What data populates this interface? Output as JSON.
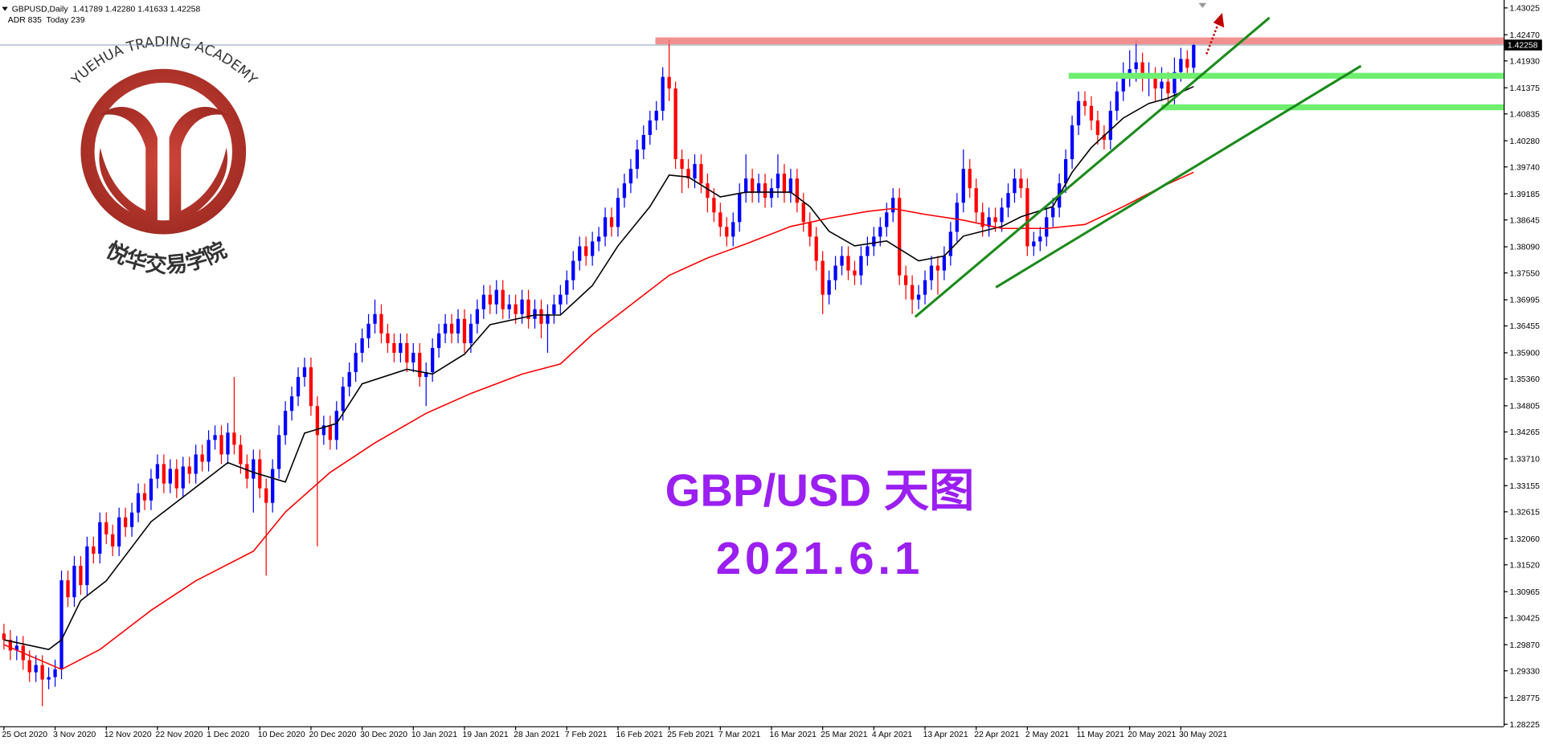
{
  "chart_data": {
    "type": "candlestick",
    "header": "GBPUSD,Daily  1.41789 1.42280 1.41633 1.42258",
    "subheader": "ADR 835  Today 239",
    "watermark": "YUEHUA TRADING ACADEMY",
    "watermark_cn": "悦华交易学院",
    "title": "GBP/USD 天图",
    "date": "2021.6.1",
    "last_price": 1.42258,
    "up_color": "#0000ff",
    "down_color": "#ff0000",
    "ylim": [
      1.28225,
      1.43025
    ],
    "yticks": [
      1.43025,
      {
        "value": 1.4247,
        "label": "1.42470"
      },
      {
        "value": 1.4193,
        "label": "1.41930"
      },
      1.41375,
      1.40835,
      {
        "value": 1.4028,
        "label": "1.40280"
      },
      {
        "value": 1.3974,
        "label": "1.39740"
      },
      1.39185,
      1.38645,
      {
        "value": 1.3809,
        "label": "1.38090"
      },
      {
        "value": 1.3755,
        "label": "1.37550"
      },
      1.36995,
      1.36455,
      {
        "value": 1.359,
        "label": "1.35900"
      },
      {
        "value": 1.3536,
        "label": "1.35360"
      },
      1.34805,
      1.34265,
      {
        "value": 1.3371,
        "label": "1.33710"
      },
      1.33155,
      1.32615,
      {
        "value": 1.3206,
        "label": "1.32060"
      },
      {
        "value": 1.3152,
        "label": "1.31520"
      },
      1.30965,
      1.30425,
      {
        "value": 1.2987,
        "label": "1.29870"
      },
      {
        "value": 1.2933,
        "label": "1.29330"
      },
      1.28775,
      1.28225
    ],
    "categories": [
      "25 Oct 2020",
      null,
      null,
      null,
      null,
      null,
      null,
      null,
      "3 Nov 2020",
      null,
      null,
      null,
      null,
      null,
      null,
      null,
      "12 Nov 2020",
      null,
      null,
      null,
      null,
      null,
      null,
      null,
      "22 Nov 2020",
      null,
      null,
      null,
      null,
      null,
      null,
      null,
      "1 Dec 2020",
      null,
      null,
      null,
      null,
      null,
      null,
      null,
      "10 Dec 2020",
      null,
      null,
      null,
      null,
      null,
      null,
      null,
      "20 Dec 2020",
      null,
      null,
      null,
      null,
      null,
      null,
      null,
      "30 Dec 2020",
      null,
      null,
      null,
      null,
      null,
      null,
      null,
      "10 Jan 2021",
      null,
      null,
      null,
      null,
      null,
      null,
      null,
      "19 Jan 2021",
      null,
      null,
      null,
      null,
      null,
      null,
      null,
      "28 Jan 2021",
      null,
      null,
      null,
      null,
      null,
      null,
      null,
      "7 Feb 2021",
      null,
      null,
      null,
      null,
      null,
      null,
      null,
      "16 Feb 2021",
      null,
      null,
      null,
      null,
      null,
      null,
      null,
      "25 Feb 2021",
      null,
      null,
      null,
      null,
      null,
      null,
      null,
      "7 Mar 2021",
      null,
      null,
      null,
      null,
      null,
      null,
      null,
      "16 Mar 2021",
      null,
      null,
      null,
      null,
      null,
      null,
      null,
      "25 Mar 2021",
      null,
      null,
      null,
      null,
      null,
      null,
      null,
      "4 Apr 2021",
      null,
      null,
      null,
      null,
      null,
      null,
      null,
      "13 Apr 2021",
      null,
      null,
      null,
      null,
      null,
      null,
      null,
      "22 Apr 2021",
      null,
      null,
      null,
      null,
      null,
      null,
      null,
      "2 May 2021",
      null,
      null,
      null,
      null,
      null,
      null,
      null,
      "11 May 2021",
      null,
      null,
      null,
      null,
      null,
      null,
      null,
      "20 May 2021",
      null,
      null,
      null,
      null,
      null,
      null,
      null,
      "30 May 2021",
      null,
      null
    ],
    "open": [
      1.301,
      1.2997,
      1.2975,
      1.2985,
      1.2955,
      1.293,
      1.2945,
      1.2915,
      1.292,
      1.2936,
      1.312,
      1.3085,
      1.315,
      1.311,
      1.319,
      1.3175,
      1.324,
      1.3215,
      1.319,
      1.325,
      1.323,
      1.326,
      1.33,
      1.3285,
      1.333,
      1.336,
      1.332,
      1.335,
      1.331,
      1.3355,
      1.334,
      1.338,
      1.3365,
      1.341,
      1.342,
      1.338,
      1.3425,
      1.34,
      1.336,
      1.333,
      1.337,
      1.331,
      1.328,
      1.335,
      1.342,
      1.347,
      1.35,
      1.354,
      1.356,
      1.348,
      1.342,
      1.344,
      1.341,
      1.347,
      1.352,
      1.355,
      1.359,
      1.362,
      1.365,
      1.367,
      1.363,
      1.361,
      1.359,
      1.361,
      1.357,
      1.359,
      1.354,
      1.355,
      1.36,
      1.363,
      1.365,
      1.363,
      1.366,
      1.361,
      1.365,
      1.368,
      1.371,
      1.369,
      1.372,
      1.368,
      1.369,
      1.367,
      1.37,
      1.366,
      1.368,
      1.365,
      1.367,
      1.369,
      1.371,
      1.374,
      1.378,
      1.381,
      1.379,
      1.382,
      1.383,
      1.387,
      1.385,
      1.391,
      1.394,
      1.397,
      1.401,
      1.404,
      1.407,
      1.409,
      1.416,
      1.4136,
      1.399,
      1.397,
      1.395,
      1.398,
      1.394,
      1.391,
      1.388,
      1.385,
      1.383,
      1.386,
      1.392,
      1.395,
      1.392,
      1.394,
      1.391,
      1.393,
      1.396,
      1.392,
      1.395,
      1.39,
      1.386,
      1.383,
      1.378,
      1.371,
      1.374,
      1.377,
      1.379,
      1.376,
      1.375,
      1.379,
      1.381,
      1.383,
      1.385,
      1.388,
      1.391,
      1.375,
      1.373,
      1.37,
      1.371,
      1.374,
      1.377,
      1.376,
      1.379,
      1.384,
      1.39,
      1.397,
      1.393,
      1.388,
      1.385,
      1.387,
      1.386,
      1.389,
      1.392,
      1.395,
      1.393,
      1.381,
      1.382,
      1.383,
      1.387,
      1.389,
      1.394,
      1.399,
      1.406,
      1.411,
      1.41,
      1.407,
      1.404,
      1.403,
      1.409,
      1.413,
      1.416,
      1.4176,
      1.419,
      1.4156,
      1.416,
      1.4136,
      1.415,
      1.4126,
      1.417,
      1.4197,
      1.41789
    ],
    "high": [
      1.303,
      1.3017,
      1.3005,
      1.3005,
      1.2975,
      1.2965,
      1.2965,
      1.294,
      1.2956,
      1.314,
      1.314,
      1.317,
      1.317,
      1.321,
      1.321,
      1.326,
      1.326,
      1.3235,
      1.327,
      1.327,
      1.328,
      1.332,
      1.332,
      1.335,
      1.338,
      1.338,
      1.337,
      1.337,
      1.3375,
      1.3375,
      1.34,
      1.34,
      1.343,
      1.344,
      1.344,
      1.3445,
      1.354,
      1.342,
      1.338,
      1.339,
      1.339,
      1.333,
      1.337,
      1.344,
      1.349,
      1.352,
      1.356,
      1.358,
      1.358,
      1.35,
      1.346,
      1.346,
      1.349,
      1.354,
      1.357,
      1.361,
      1.364,
      1.367,
      1.37,
      1.369,
      1.365,
      1.363,
      1.363,
      1.363,
      1.361,
      1.361,
      1.357,
      1.362,
      1.365,
      1.367,
      1.367,
      1.368,
      1.368,
      1.367,
      1.37,
      1.373,
      1.373,
      1.374,
      1.374,
      1.371,
      1.371,
      1.372,
      1.372,
      1.37,
      1.37,
      1.369,
      1.371,
      1.373,
      1.376,
      1.38,
      1.383,
      1.383,
      1.384,
      1.385,
      1.389,
      1.389,
      1.393,
      1.396,
      1.399,
      1.403,
      1.406,
      1.409,
      1.411,
      1.418,
      1.4237,
      1.415,
      1.401,
      1.399,
      1.4,
      1.4,
      1.396,
      1.393,
      1.39,
      1.387,
      1.388,
      1.394,
      1.4,
      1.397,
      1.396,
      1.396,
      1.395,
      1.4,
      1.398,
      1.397,
      1.397,
      1.392,
      1.388,
      1.385,
      1.38,
      1.376,
      1.379,
      1.381,
      1.381,
      1.378,
      1.381,
      1.383,
      1.385,
      1.387,
      1.39,
      1.393,
      1.393,
      1.377,
      1.375,
      1.373,
      1.376,
      1.379,
      1.379,
      1.381,
      1.386,
      1.392,
      1.401,
      1.399,
      1.395,
      1.39,
      1.389,
      1.389,
      1.391,
      1.394,
      1.397,
      1.397,
      1.395,
      1.384,
      1.385,
      1.389,
      1.391,
      1.396,
      1.401,
      1.408,
      1.413,
      1.413,
      1.412,
      1.409,
      1.406,
      1.411,
      1.415,
      1.419,
      1.4215,
      1.4235,
      1.421,
      1.419,
      1.418,
      1.418,
      1.417,
      1.42,
      1.422,
      1.4215,
      1.4228
    ],
    "low": [
      1.2977,
      1.2955,
      1.2955,
      1.2935,
      1.291,
      1.291,
      1.286,
      1.2895,
      1.29,
      1.2916,
      1.3065,
      1.3065,
      1.309,
      1.309,
      1.3155,
      1.3155,
      1.3195,
      1.317,
      1.317,
      1.321,
      1.321,
      1.324,
      1.3265,
      1.3265,
      1.331,
      1.33,
      1.33,
      1.329,
      1.329,
      1.332,
      1.332,
      1.3345,
      1.3345,
      1.339,
      1.336,
      1.336,
      1.338,
      1.334,
      1.331,
      1.326,
      1.329,
      1.313,
      1.326,
      1.333,
      1.34,
      1.345,
      1.348,
      1.352,
      1.346,
      1.319,
      1.34,
      1.339,
      1.339,
      1.345,
      1.35,
      1.353,
      1.357,
      1.36,
      1.363,
      1.361,
      1.359,
      1.357,
      1.357,
      1.355,
      1.355,
      1.352,
      1.348,
      1.353,
      1.358,
      1.361,
      1.361,
      1.361,
      1.359,
      1.359,
      1.363,
      1.366,
      1.367,
      1.367,
      1.366,
      1.366,
      1.365,
      1.365,
      1.364,
      1.364,
      1.362,
      1.359,
      1.365,
      1.367,
      1.369,
      1.372,
      1.376,
      1.377,
      1.377,
      1.38,
      1.381,
      1.383,
      1.383,
      1.389,
      1.392,
      1.395,
      1.399,
      1.402,
      1.405,
      1.407,
      1.411,
      1.397,
      1.392,
      1.393,
      1.393,
      1.392,
      1.388,
      1.386,
      1.383,
      1.381,
      1.381,
      1.384,
      1.39,
      1.39,
      1.39,
      1.389,
      1.389,
      1.391,
      1.39,
      1.39,
      1.388,
      1.384,
      1.381,
      1.376,
      1.367,
      1.369,
      1.372,
      1.375,
      1.374,
      1.373,
      1.373,
      1.377,
      1.379,
      1.381,
      1.383,
      1.386,
      1.373,
      1.37,
      1.367,
      1.368,
      1.369,
      1.372,
      1.371,
      1.374,
      1.377,
      1.382,
      1.388,
      1.391,
      1.386,
      1.383,
      1.383,
      1.384,
      1.384,
      1.387,
      1.39,
      1.391,
      1.379,
      1.379,
      1.38,
      1.381,
      1.385,
      1.387,
      1.392,
      1.397,
      1.404,
      1.408,
      1.405,
      1.402,
      1.401,
      1.401,
      1.407,
      1.411,
      1.414,
      1.415,
      1.413,
      1.412,
      1.411,
      1.411,
      1.41,
      1.41,
      1.415,
      1.416,
      1.41633
    ],
    "close": [
      1.2997,
      1.2975,
      1.2985,
      1.2955,
      1.293,
      1.2945,
      1.2915,
      1.292,
      1.2936,
      1.312,
      1.3085,
      1.315,
      1.311,
      1.319,
      1.3175,
      1.324,
      1.3215,
      1.319,
      1.325,
      1.323,
      1.326,
      1.33,
      1.3285,
      1.333,
      1.336,
      1.332,
      1.335,
      1.331,
      1.3355,
      1.334,
      1.338,
      1.3365,
      1.341,
      1.342,
      1.338,
      1.3425,
      1.34,
      1.336,
      1.333,
      1.337,
      1.331,
      1.328,
      1.335,
      1.342,
      1.347,
      1.35,
      1.354,
      1.356,
      1.348,
      1.342,
      1.344,
      1.341,
      1.347,
      1.352,
      1.355,
      1.359,
      1.362,
      1.365,
      1.367,
      1.363,
      1.361,
      1.359,
      1.361,
      1.357,
      1.359,
      1.354,
      1.355,
      1.36,
      1.363,
      1.365,
      1.363,
      1.366,
      1.361,
      1.365,
      1.368,
      1.371,
      1.369,
      1.372,
      1.368,
      1.369,
      1.367,
      1.37,
      1.366,
      1.368,
      1.365,
      1.367,
      1.369,
      1.371,
      1.374,
      1.378,
      1.381,
      1.379,
      1.382,
      1.383,
      1.387,
      1.385,
      1.391,
      1.394,
      1.397,
      1.401,
      1.404,
      1.407,
      1.409,
      1.416,
      1.4136,
      1.399,
      1.397,
      1.395,
      1.398,
      1.394,
      1.391,
      1.388,
      1.385,
      1.383,
      1.386,
      1.392,
      1.395,
      1.392,
      1.394,
      1.391,
      1.393,
      1.396,
      1.392,
      1.395,
      1.39,
      1.386,
      1.383,
      1.378,
      1.371,
      1.374,
      1.377,
      1.379,
      1.376,
      1.375,
      1.379,
      1.381,
      1.383,
      1.385,
      1.388,
      1.391,
      1.375,
      1.373,
      1.37,
      1.371,
      1.374,
      1.377,
      1.376,
      1.379,
      1.384,
      1.39,
      1.397,
      1.393,
      1.388,
      1.385,
      1.387,
      1.386,
      1.389,
      1.392,
      1.395,
      1.393,
      1.381,
      1.382,
      1.383,
      1.387,
      1.389,
      1.394,
      1.399,
      1.406,
      1.411,
      1.41,
      1.407,
      1.404,
      1.403,
      1.409,
      1.413,
      1.416,
      1.4176,
      1.419,
      1.4156,
      1.416,
      1.4136,
      1.415,
      1.4126,
      1.417,
      1.4197,
      1.41789,
      1.42258
    ],
    "lines": [
      {
        "color": "#000000",
        "x": [
          0,
          7,
          9,
          12,
          16,
          23,
          29,
          35,
          39,
          44,
          47,
          52,
          56,
          63,
          67,
          72,
          76,
          83,
          87,
          92,
          96,
          101,
          104,
          107,
          112,
          116,
          123,
          126,
          129,
          133,
          138,
          143,
          147,
          150,
          153,
          156,
          159,
          164,
          167,
          170,
          175,
          179,
          182,
          186
        ],
        "values": [
          1.2997,
          1.2977,
          1.2997,
          1.3078,
          1.3119,
          1.3241,
          1.3302,
          1.3363,
          1.3343,
          1.3323,
          1.3424,
          1.3444,
          1.3526,
          1.3556,
          1.3546,
          1.3587,
          1.3648,
          1.3668,
          1.3668,
          1.3729,
          1.3811,
          1.3892,
          1.3957,
          1.3953,
          1.3912,
          1.3922,
          1.3922,
          1.3892,
          1.3841,
          1.3811,
          1.3821,
          1.378,
          1.379,
          1.3831,
          1.3841,
          1.3851,
          1.3871,
          1.3892,
          1.3963,
          1.4014,
          1.4075,
          1.4105,
          1.4116,
          1.414
        ]
      },
      {
        "color": "#ff0000",
        "x": [
          0,
          9,
          15,
          23,
          30,
          39,
          44,
          51,
          58,
          66,
          73,
          81,
          87,
          92,
          98,
          104,
          110,
          116,
          123,
          129,
          135,
          139,
          144,
          150,
          156,
          163,
          169,
          175,
          181,
          186
        ],
        "values": [
          1.2987,
          1.2936,
          1.2977,
          1.3058,
          1.3119,
          1.318,
          1.3261,
          1.3343,
          1.3404,
          1.3465,
          1.3506,
          1.3546,
          1.3567,
          1.3628,
          1.3689,
          1.375,
          1.3786,
          1.3815,
          1.3851,
          1.3868,
          1.3882,
          1.3888,
          1.3876,
          1.3864,
          1.3847,
          1.3847,
          1.3855,
          1.3892,
          1.3933,
          1.3963
        ]
      }
    ]
  }
}
